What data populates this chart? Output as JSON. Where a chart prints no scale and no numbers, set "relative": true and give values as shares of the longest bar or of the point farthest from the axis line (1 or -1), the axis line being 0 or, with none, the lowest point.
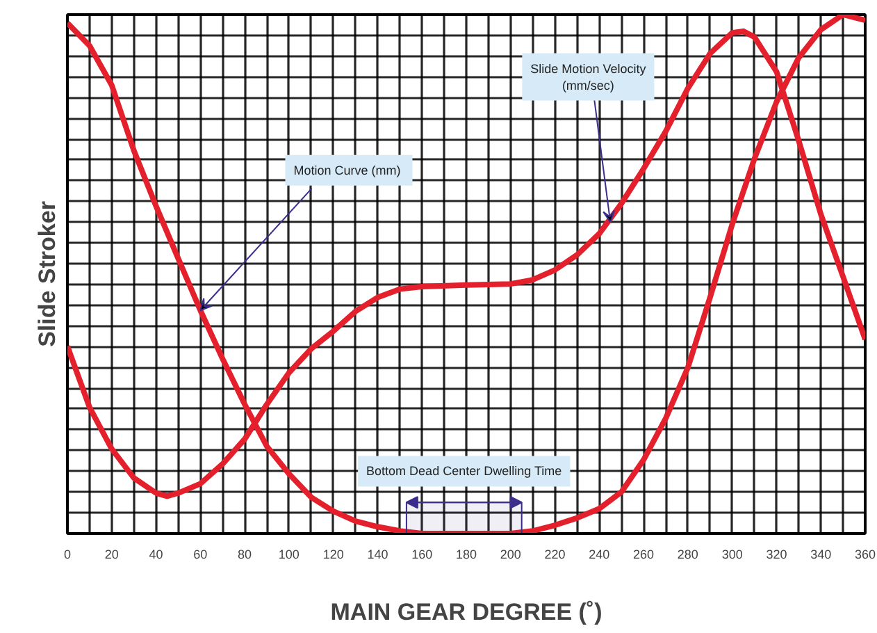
{
  "chart_data": {
    "type": "line",
    "relative": true,
    "xlabel": "MAIN GEAR DEGREE (˚)",
    "ylabel": "Slide Stroker",
    "xlim": [
      0,
      360
    ],
    "xticks": [
      0,
      20,
      40,
      60,
      80,
      100,
      120,
      140,
      160,
      180,
      200,
      220,
      240,
      260,
      280,
      300,
      320,
      340,
      360
    ],
    "grid": true,
    "line_style": "solid",
    "marker": "none",
    "series": [
      {
        "color": "#e3202b",
        "x": [
          0,
          10,
          20,
          30,
          40,
          50,
          60,
          70,
          80,
          90,
          100,
          110,
          120,
          130,
          140,
          150,
          160,
          170,
          180,
          190,
          200,
          210,
          220,
          230,
          240,
          250,
          260,
          270,
          280,
          290,
          300,
          310,
          320,
          330,
          340,
          350,
          360
        ],
        "values": [
          0.984,
          0.94,
          0.864,
          0.738,
          0.631,
          0.53,
          0.43,
          0.337,
          0.249,
          0.168,
          0.115,
          0.07,
          0.043,
          0.024,
          0.013,
          0.005,
          0,
          0,
          0,
          0,
          0,
          0.005,
          0.016,
          0.03,
          0.048,
          0.08,
          0.142,
          0.222,
          0.32,
          0.455,
          0.596,
          0.722,
          0.832,
          0.917,
          0.971,
          1.0,
          0.989
        ]
      },
      {
        "color": "#e3202b",
        "x": [
          0,
          10,
          20,
          30,
          40,
          45,
          50,
          60,
          70,
          80,
          90,
          100,
          110,
          120,
          130,
          140,
          150,
          160,
          180,
          200,
          210,
          220,
          230,
          240,
          250,
          260,
          270,
          280,
          290,
          300,
          305,
          310,
          320,
          330,
          340,
          350,
          360
        ],
        "values": [
          0.361,
          0.243,
          0.163,
          0.107,
          0.078,
          0.072,
          0.078,
          0.096,
          0.134,
          0.182,
          0.249,
          0.31,
          0.356,
          0.39,
          0.428,
          0.455,
          0.471,
          0.476,
          0.479,
          0.481,
          0.489,
          0.508,
          0.537,
          0.578,
          0.636,
          0.703,
          0.775,
          0.858,
          0.925,
          0.965,
          0.968,
          0.957,
          0.89,
          0.757,
          0.615,
          0.495,
          0.374
        ]
      }
    ],
    "annotations": [
      {
        "text": "Motion Curve  (mm)",
        "x": 60,
        "y": 0.43
      },
      {
        "text": "Slide Motion Velocity\n(mm/sec)",
        "x": 245,
        "y": 0.6
      }
    ],
    "bands": [
      {
        "axis": "x",
        "from": 153,
        "to": 205,
        "label": "Bottom Dead Center Dwelling Time",
        "color": "#3a2d8c"
      }
    ]
  }
}
